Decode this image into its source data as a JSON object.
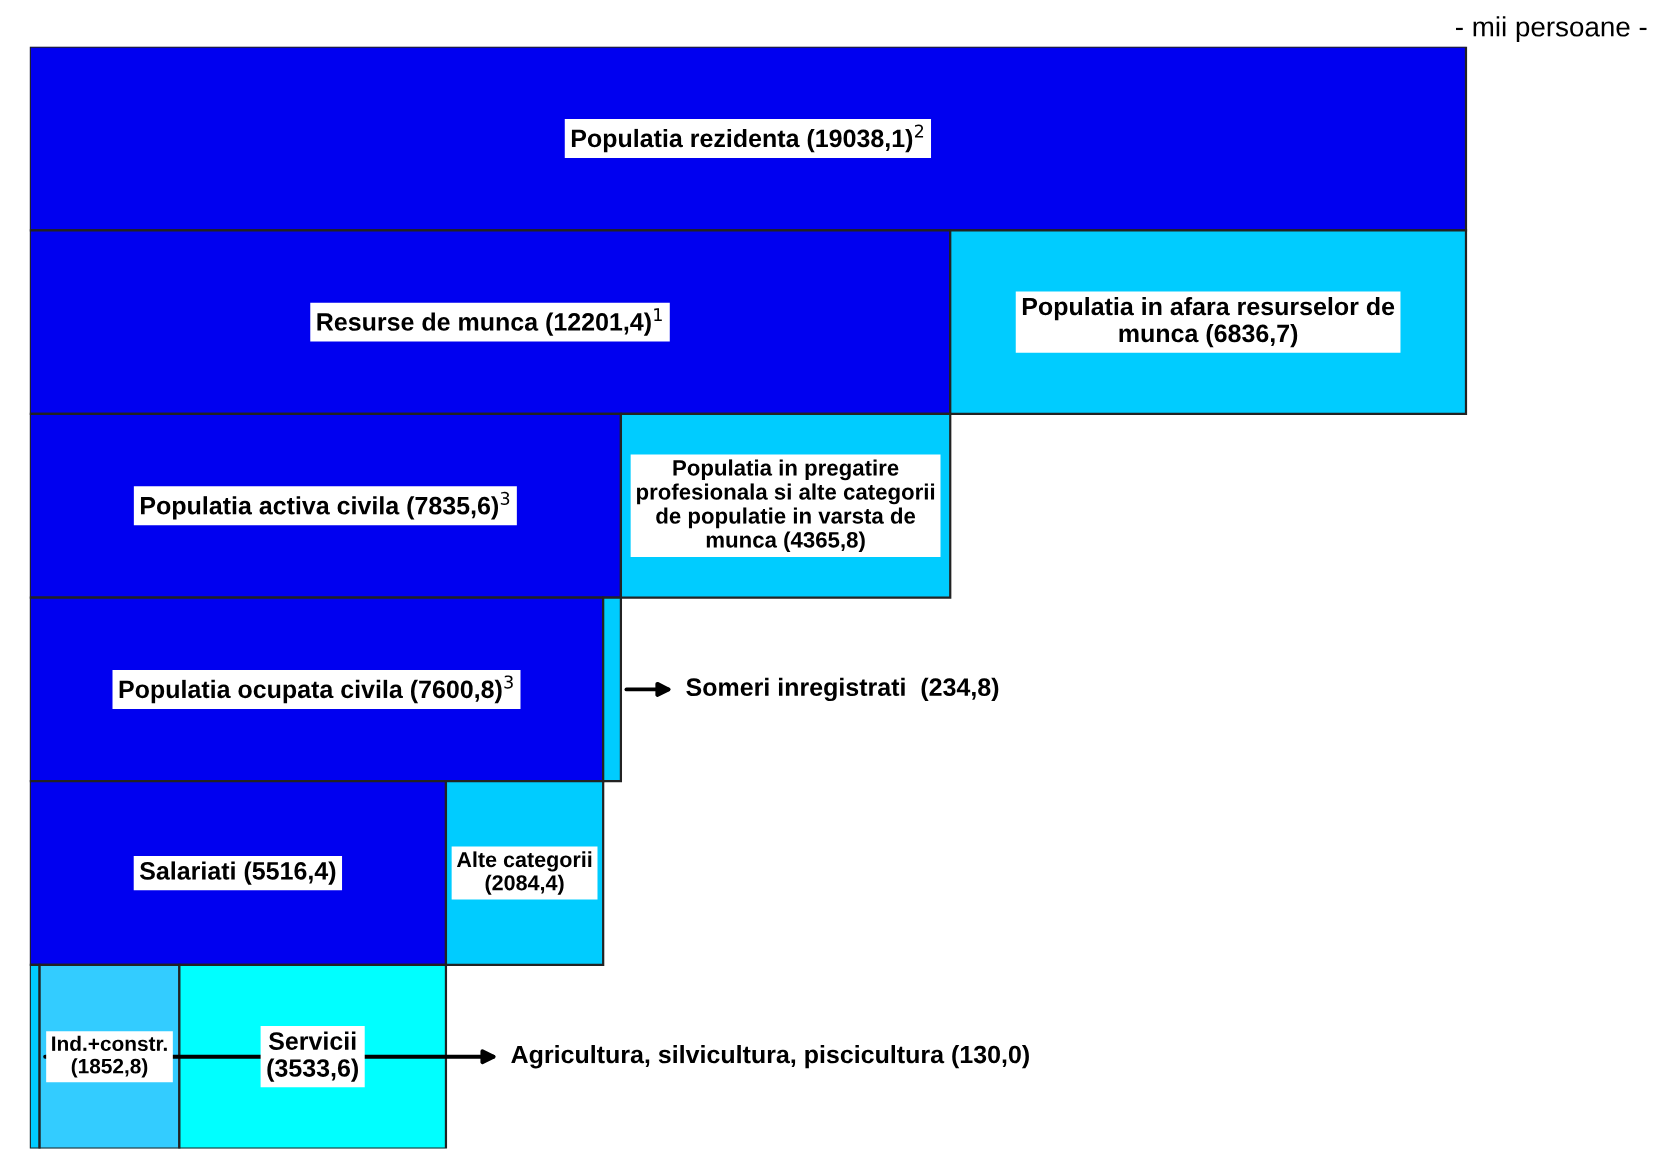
{
  "chart_data": {
    "type": "bar",
    "orientation": "horizontal",
    "stacked": true,
    "categories": [
      null,
      null,
      null,
      null,
      null,
      null
    ],
    "series": [
      {
        "color": "#0000f0",
        "values": [
          19038.1,
          12201.4,
          7835.6,
          7600.8,
          5516.4,
          null
        ],
        "value_labels": [
          "Populatia rezidenta (19038,1)$^{2}$",
          "Resurse de munca (12201,4)$^{1}$",
          "Populatia activa civila (7835,6)$^{3}$",
          "Populatia ocupata civila (7600,8)$^{3}$",
          "Salariati (5516,4)",
          null
        ]
      },
      {
        "color": "#00ccff",
        "values": [
          null,
          6836.7,
          4365.8,
          234.8,
          2084.4,
          130.0
        ],
        "value_labels": [
          null,
          "Populatia in afara resurselor de\nmunca (6836,7)",
          "Populatia in pregatire\nprofesionala si alte categorii\nde populatie in varsta de\nmunca (4365,8)",
          "Someri inregistrati  (234,8)",
          "Alte categorii\n(2084,4)",
          "Agricultura, silvicultura, piscicultura (130,0)"
        ]
      },
      {
        "color": "#33ccff",
        "values": [
          null,
          null,
          null,
          null,
          null,
          1852.8
        ],
        "value_labels": [
          null,
          null,
          null,
          null,
          null,
          "Ind.+constr.\n(1852,8)"
        ]
      },
      {
        "color": "#00ffff",
        "values": [
          null,
          null,
          null,
          null,
          null,
          3533.6
        ],
        "value_labels": [
          null,
          null,
          null,
          null,
          null,
          "Servicii\n(3533,6)"
        ]
      }
    ],
    "annotations": [
      "- mii persoane -"
    ]
  }
}
